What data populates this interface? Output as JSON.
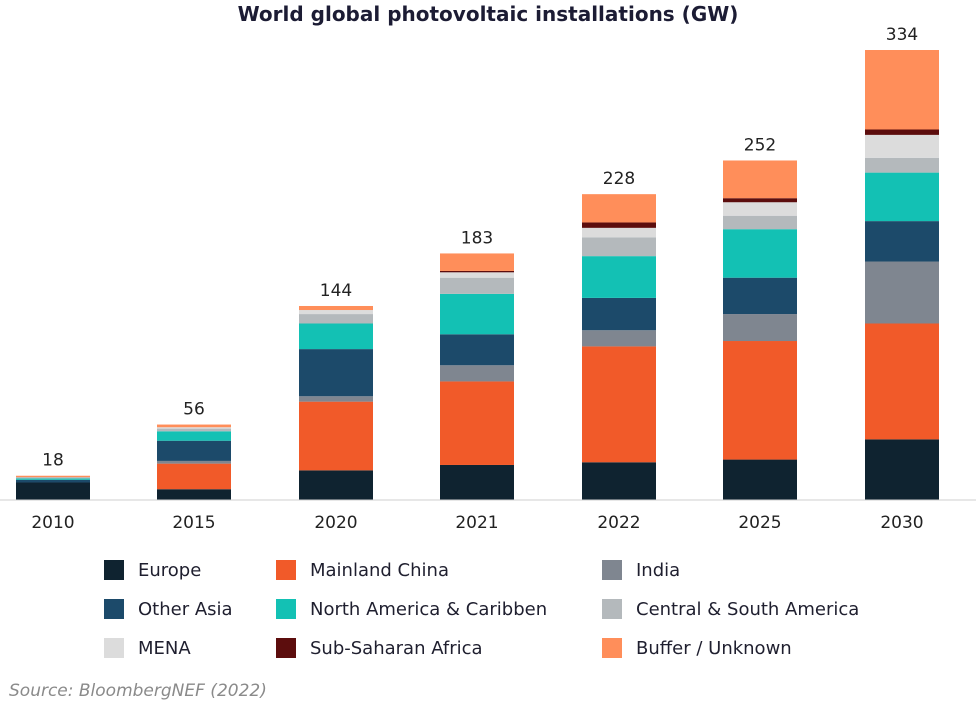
{
  "chart_data": {
    "type": "bar",
    "stacked": true,
    "title": "World global photovoltaic installations (GW)",
    "xlabel": "",
    "ylabel": "",
    "grid": false,
    "legend_position": "bottom",
    "ylim": [
      0,
      340
    ],
    "categories": [
      "2010",
      "2015",
      "2020",
      "2021",
      "2022",
      "2025",
      "2030"
    ],
    "totals": [
      "18",
      "56",
      "144",
      "183",
      "228",
      "252",
      "334"
    ],
    "series": [
      {
        "name": "Europe",
        "color": "#0f2330",
        "values": [
          13,
          8,
          22,
          26,
          28,
          30,
          45
        ]
      },
      {
        "name": "Mainland China",
        "color": "#f15a29",
        "values": [
          0,
          19,
          51,
          62,
          86,
          88,
          86
        ]
      },
      {
        "name": "India",
        "color": "#7f8690",
        "values": [
          0,
          2,
          4,
          12,
          12,
          20,
          46
        ]
      },
      {
        "name": "Other Asia",
        "color": "#1c4a6a",
        "values": [
          2,
          15,
          35,
          23,
          24,
          27,
          30
        ]
      },
      {
        "name": "North America & Caribben",
        "color": "#13c1b4",
        "values": [
          1,
          7,
          19,
          30,
          31,
          36,
          36
        ]
      },
      {
        "name": "Central & South America",
        "color": "#b4b9bc",
        "values": [
          1,
          2,
          7,
          12,
          14,
          10,
          11
        ]
      },
      {
        "name": "MENA",
        "color": "#dcdcdc",
        "values": [
          0,
          1,
          3,
          4,
          7,
          10,
          17
        ]
      },
      {
        "name": "Sub-Saharan Africa",
        "color": "#5c0d0d",
        "values": [
          0,
          0,
          0,
          1,
          4,
          3,
          4
        ]
      },
      {
        "name": "Buffer / Unknown",
        "color": "#ff8e5a",
        "values": [
          1,
          2,
          3,
          13,
          21,
          28,
          59
        ]
      }
    ]
  },
  "source": "Source: BloombergNEF (2022)"
}
